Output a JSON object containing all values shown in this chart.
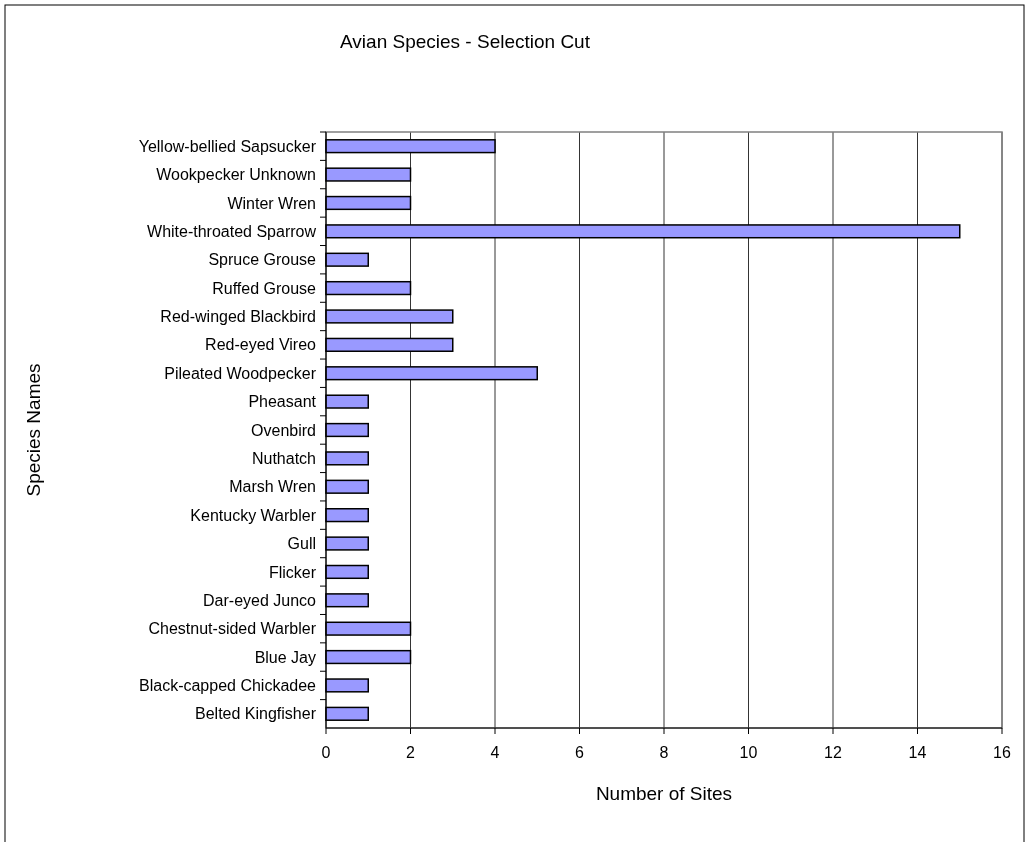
{
  "chart_data": {
    "type": "bar",
    "orientation": "horizontal",
    "title": "Avian Species - Selection Cut",
    "xlabel": "Number of Sites",
    "ylabel": "Species Names",
    "categories": [
      "Yellow-bellied Sapsucker",
      "Wookpecker Unknown",
      "Winter Wren",
      "White-throated Sparrow",
      "Spruce Grouse",
      "Ruffed Grouse",
      "Red-winged Blackbird",
      "Red-eyed Vireo",
      "Pileated Woodpecker",
      "Pheasant",
      "Ovenbird",
      "Nuthatch",
      "Marsh Wren",
      "Kentucky Warbler",
      "Gull",
      "Flicker",
      "Dar-eyed Junco",
      "Chestnut-sided Warbler",
      "Blue Jay",
      "Black-capped Chickadee",
      "Belted Kingfisher"
    ],
    "values": [
      4,
      2,
      2,
      15,
      1,
      2,
      3,
      3,
      5,
      1,
      1,
      1,
      1,
      1,
      1,
      1,
      1,
      2,
      2,
      1,
      1
    ],
    "color": "#9999ff",
    "xlim": [
      0,
      16
    ],
    "xticks": [
      0,
      2,
      4,
      6,
      8,
      10,
      12,
      14,
      16
    ],
    "grid": "x"
  }
}
